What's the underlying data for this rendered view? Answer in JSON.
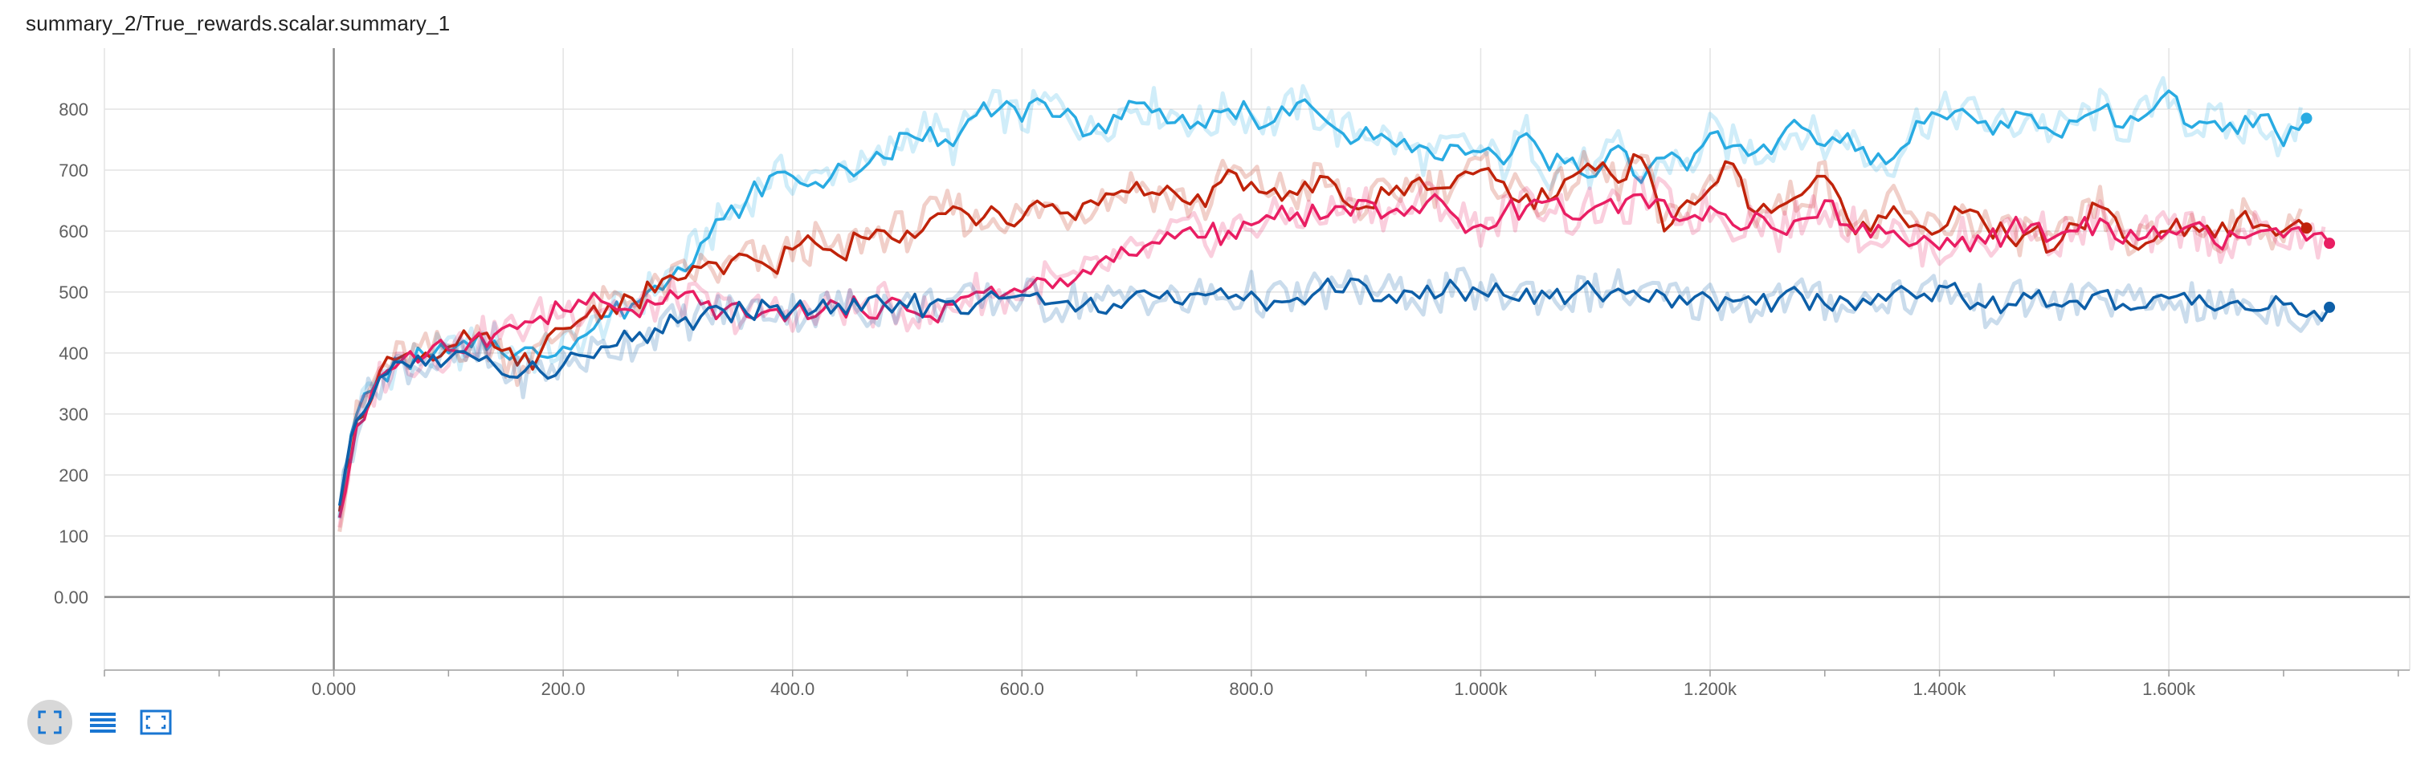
{
  "title": "summary_2/True_rewards.scalar.summary_1",
  "toolbar": {
    "buttons": [
      {
        "icon": "fit-domain-icon",
        "active": true
      },
      {
        "icon": "log-scale-icon",
        "active": false
      },
      {
        "icon": "data-selection-icon",
        "active": false
      }
    ],
    "accent": "#1976d2"
  },
  "chart_data": {
    "type": "line",
    "title": "summary_2/True_rewards.scalar.summary_1",
    "xlabel": "",
    "ylabel": "",
    "xlim": [
      -200,
      1810
    ],
    "ylim": [
      -120,
      900
    ],
    "x_ticks": [
      {
        "value": 0,
        "label": "0.000"
      },
      {
        "value": 200,
        "label": "200.0"
      },
      {
        "value": 400,
        "label": "400.0"
      },
      {
        "value": 600,
        "label": "600.0"
      },
      {
        "value": 800,
        "label": "800.0"
      },
      {
        "value": 1000,
        "label": "1.000k"
      },
      {
        "value": 1200,
        "label": "1.200k"
      },
      {
        "value": 1400,
        "label": "1.400k"
      },
      {
        "value": 1600,
        "label": "1.600k"
      }
    ],
    "y_ticks": [
      {
        "value": 0,
        "label": "0.00"
      },
      {
        "value": 100,
        "label": "100"
      },
      {
        "value": 200,
        "label": "200"
      },
      {
        "value": 300,
        "label": "300"
      },
      {
        "value": 400,
        "label": "400"
      },
      {
        "value": 500,
        "label": "500"
      },
      {
        "value": 600,
        "label": "600"
      },
      {
        "value": 700,
        "label": "700"
      },
      {
        "value": 800,
        "label": "800"
      }
    ],
    "grid": true,
    "legend": "none",
    "series": [
      {
        "color": "#29abe2",
        "end_marker": true,
        "x": [
          5,
          20,
          40,
          60,
          80,
          100,
          120,
          140,
          160,
          180,
          200,
          220,
          240,
          260,
          280,
          300,
          320,
          340,
          360,
          380,
          400,
          420,
          440,
          460,
          480,
          500,
          520,
          540,
          560,
          580,
          600,
          620,
          640,
          660,
          680,
          700,
          720,
          740,
          760,
          780,
          800,
          820,
          840,
          860,
          880,
          900,
          920,
          940,
          960,
          980,
          1000,
          1020,
          1040,
          1060,
          1080,
          1100,
          1120,
          1140,
          1160,
          1180,
          1200,
          1220,
          1240,
          1260,
          1280,
          1300,
          1320,
          1340,
          1360,
          1380,
          1400,
          1420,
          1440,
          1460,
          1480,
          1500,
          1520,
          1540,
          1560,
          1580,
          1600,
          1620,
          1640,
          1660,
          1680,
          1700,
          1720
        ],
        "y": [
          150,
          300,
          365,
          385,
          395,
          400,
          410,
          420,
          400,
          395,
          410,
          430,
          460,
          480,
          510,
          540,
          580,
          620,
          650,
          690,
          690,
          680,
          710,
          700,
          720,
          760,
          770,
          740,
          790,
          800,
          780,
          810,
          800,
          760,
          790,
          810,
          800,
          790,
          770,
          800,
          790,
          780,
          810,
          790,
          760,
          770,
          750,
          730,
          720,
          740,
          730,
          710,
          760,
          700,
          720,
          690,
          740,
          680,
          720,
          700,
          760,
          740,
          730,
          750,
          770,
          740,
          760,
          710,
          720,
          780,
          790,
          800,
          780,
          770,
          790,
          760,
          780,
          800,
          770,
          790,
          830,
          770,
          780,
          760,
          790,
          740,
          785
        ]
      },
      {
        "color": "#c0230a",
        "end_marker": true,
        "x": [
          5,
          20,
          40,
          60,
          80,
          100,
          120,
          140,
          160,
          180,
          200,
          220,
          240,
          260,
          280,
          300,
          320,
          340,
          360,
          380,
          400,
          420,
          440,
          460,
          480,
          500,
          520,
          540,
          560,
          580,
          600,
          620,
          640,
          660,
          680,
          700,
          720,
          740,
          760,
          780,
          800,
          820,
          840,
          860,
          880,
          900,
          920,
          940,
          960,
          980,
          1000,
          1020,
          1040,
          1060,
          1080,
          1100,
          1120,
          1140,
          1160,
          1180,
          1200,
          1220,
          1240,
          1260,
          1280,
          1300,
          1320,
          1340,
          1360,
          1380,
          1400,
          1420,
          1440,
          1460,
          1480,
          1500,
          1520,
          1540,
          1560,
          1580,
          1600,
          1620,
          1640,
          1660,
          1680,
          1700,
          1720
        ],
        "y": [
          140,
          290,
          370,
          395,
          400,
          410,
          420,
          410,
          380,
          400,
          440,
          460,
          480,
          490,
          500,
          520,
          540,
          530,
          560,
          540,
          570,
          580,
          560,
          590,
          600,
          600,
          620,
          640,
          610,
          630,
          620,
          640,
          630,
          650,
          660,
          680,
          660,
          650,
          640,
          700,
          680,
          670,
          660,
          690,
          650,
          640,
          660,
          680,
          670,
          690,
          700,
          680,
          660,
          650,
          690,
          700,
          680,
          720,
          600,
          650,
          670,
          710,
          630,
          640,
          660,
          690,
          620,
          600,
          640,
          610,
          600,
          630,
          610,
          590,
          600,
          570,
          610,
          640,
          590,
          580,
          600,
          610,
          590,
          620,
          610,
          600,
          605
        ]
      },
      {
        "color": "#e91e63",
        "end_marker": true,
        "x": [
          5,
          20,
          40,
          60,
          80,
          100,
          120,
          140,
          160,
          180,
          200,
          220,
          240,
          260,
          280,
          300,
          320,
          340,
          360,
          380,
          400,
          420,
          440,
          460,
          480,
          500,
          520,
          540,
          560,
          580,
          600,
          620,
          640,
          660,
          680,
          700,
          720,
          740,
          760,
          780,
          800,
          820,
          840,
          860,
          880,
          900,
          920,
          940,
          960,
          980,
          1000,
          1020,
          1040,
          1060,
          1080,
          1100,
          1120,
          1140,
          1160,
          1180,
          1200,
          1220,
          1240,
          1260,
          1280,
          1300,
          1320,
          1340,
          1360,
          1380,
          1400,
          1420,
          1440,
          1460,
          1480,
          1500,
          1520,
          1540,
          1560,
          1580,
          1600,
          1620,
          1640,
          1660,
          1680,
          1700,
          1720,
          1740
        ],
        "y": [
          130,
          280,
          360,
          390,
          395,
          405,
          420,
          430,
          440,
          460,
          470,
          480,
          480,
          470,
          480,
          490,
          480,
          470,
          460,
          470,
          470,
          460,
          480,
          470,
          480,
          470,
          460,
          480,
          500,
          490,
          500,
          520,
          510,
          530,
          550,
          560,
          580,
          600,
          590,
          600,
          610,
          620,
          630,
          620,
          640,
          650,
          630,
          640,
          660,
          620,
          610,
          630,
          640,
          650,
          620,
          640,
          630,
          660,
          650,
          620,
          640,
          610,
          630,
          600,
          620,
          650,
          610,
          590,
          600,
          580,
          570,
          590,
          580,
          600,
          610,
          590,
          600,
          620,
          580,
          590,
          600,
          610,
          580,
          590,
          600,
          590,
          585,
          580
        ]
      },
      {
        "color": "#0d5fa8",
        "end_marker": true,
        "x": [
          5,
          20,
          40,
          60,
          80,
          100,
          120,
          140,
          160,
          180,
          200,
          220,
          240,
          260,
          280,
          300,
          320,
          340,
          360,
          380,
          400,
          420,
          440,
          460,
          480,
          500,
          520,
          540,
          560,
          580,
          600,
          620,
          640,
          660,
          680,
          700,
          720,
          740,
          760,
          780,
          800,
          820,
          840,
          860,
          880,
          900,
          920,
          940,
          960,
          980,
          1000,
          1020,
          1040,
          1060,
          1080,
          1100,
          1120,
          1140,
          1160,
          1180,
          1200,
          1220,
          1240,
          1260,
          1280,
          1300,
          1320,
          1340,
          1360,
          1380,
          1400,
          1420,
          1440,
          1460,
          1480,
          1500,
          1520,
          1540,
          1560,
          1580,
          1600,
          1620,
          1640,
          1660,
          1680,
          1700,
          1720,
          1740
        ],
        "y": [
          150,
          290,
          360,
          385,
          380,
          390,
          395,
          380,
          360,
          370,
          380,
          395,
          410,
          420,
          440,
          450,
          460,
          470,
          465,
          475,
          470,
          470,
          480,
          470,
          480,
          475,
          480,
          485,
          480,
          490,
          495,
          480,
          485,
          490,
          480,
          500,
          490,
          480,
          495,
          490,
          500,
          485,
          490,
          505,
          500,
          510,
          495,
          500,
          490,
          505,
          500,
          495,
          505,
          490,
          495,
          500,
          505,
          490,
          495,
          480,
          490,
          485,
          480,
          490,
          495,
          480,
          485,
          480,
          500,
          490,
          510,
          490,
          475,
          480,
          490,
          480,
          485,
          500,
          480,
          475,
          490,
          480,
          470,
          485,
          470,
          480,
          460,
          475
        ]
      }
    ]
  }
}
